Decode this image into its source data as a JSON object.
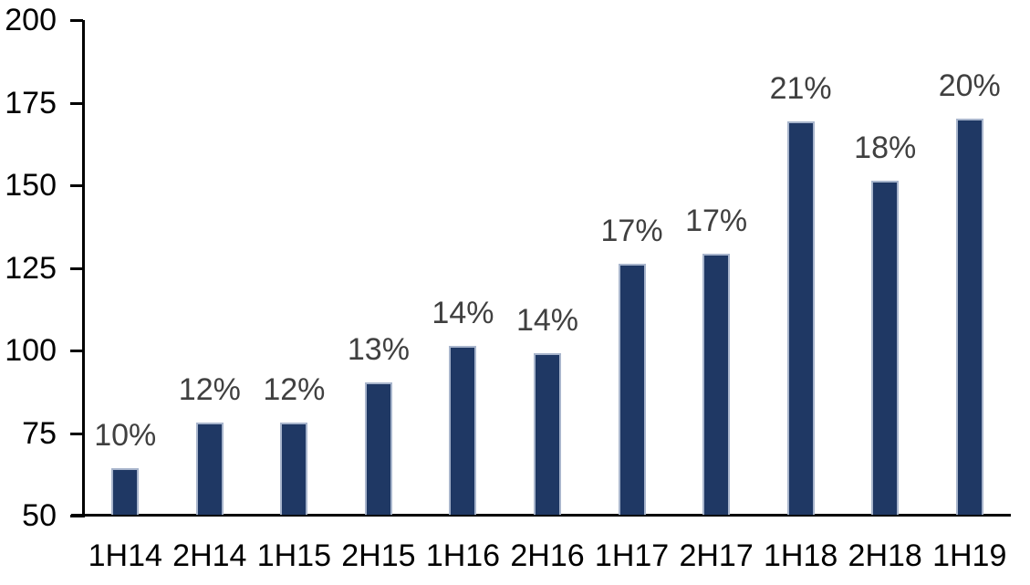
{
  "chart_data": {
    "type": "bar",
    "title": "",
    "xlabel": "",
    "ylabel": "",
    "categories": [
      "1H14",
      "2H14",
      "1H15",
      "2H15",
      "1H16",
      "2H16",
      "1H17",
      "2H17",
      "1H18",
      "2H18",
      "1H19"
    ],
    "values": [
      64,
      78,
      78,
      90,
      101,
      99,
      126,
      129,
      169,
      151,
      170
    ],
    "data_labels": [
      "10%",
      "12%",
      "12%",
      "13%",
      "14%",
      "14%",
      "17%",
      "17%",
      "21%",
      "18%",
      "20%"
    ],
    "ylim": [
      50,
      200
    ],
    "yticks": [
      50,
      75,
      100,
      125,
      150,
      175,
      200
    ],
    "grid": "off",
    "legend": "none",
    "colors": {
      "bar_fill": "#1f3864",
      "bar_border": "#a8b5cc",
      "data_label": "#404040",
      "axis": "#000000",
      "background": "#ffffff"
    }
  }
}
